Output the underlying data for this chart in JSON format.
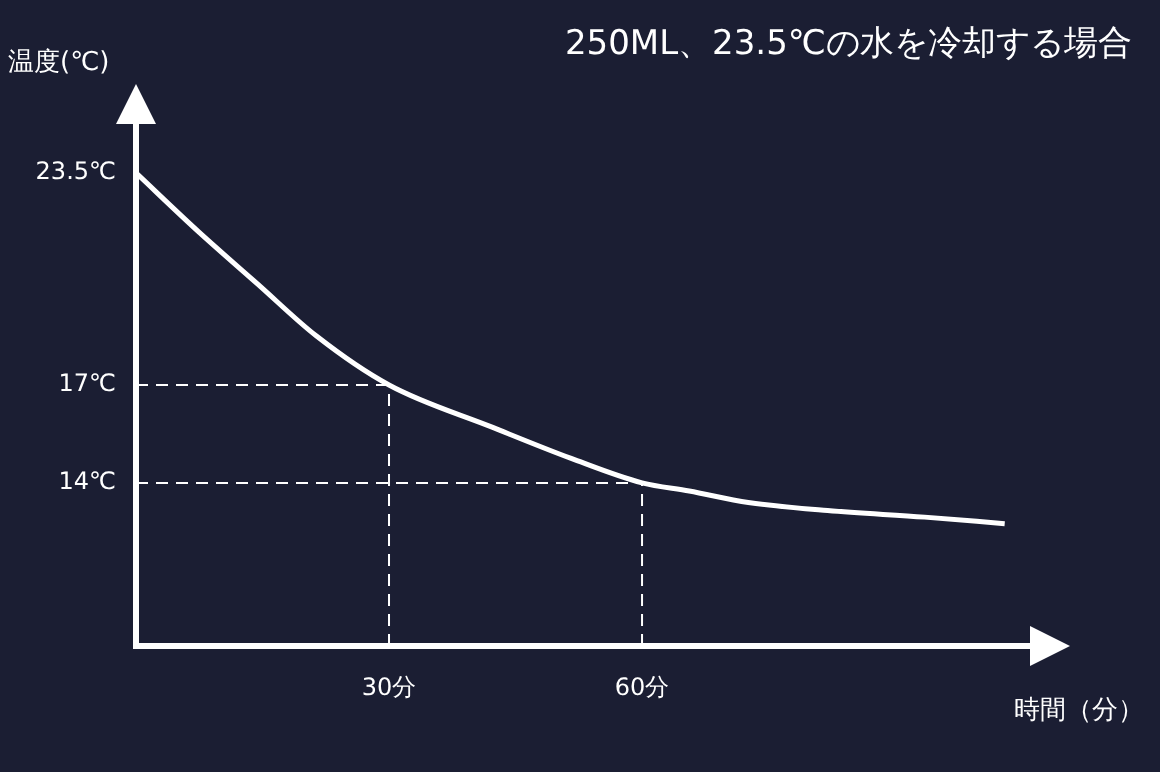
{
  "chart_data": {
    "type": "line",
    "title": "250ML、23.5℃の水を冷却する場合",
    "xlabel": "時間（分）",
    "ylabel": "温度(℃)",
    "x": [
      0,
      7.4,
      14.4,
      21.4,
      30,
      42.3,
      51.6,
      60,
      65.6,
      72.6,
      82,
      93.5,
      103
    ],
    "series": [
      {
        "color": "#ffffff",
        "values": [
          23.5,
          21.7,
          20.1,
          18.5,
          17,
          15.7,
          14.75,
          14,
          13.75,
          13.4,
          13.15,
          12.95,
          12.75
        ]
      }
    ],
    "xlim": [
      0,
      106
    ],
    "xticks": [
      {
        "value": 30,
        "label": "30分"
      },
      {
        "value": 60,
        "label": "60分"
      }
    ],
    "ylim": [
      9,
      25
    ],
    "yticks": [
      {
        "value": 14,
        "label": "14℃"
      },
      {
        "value": 17,
        "label": "17℃"
      },
      {
        "value": 23.5,
        "label": "23.5℃"
      }
    ],
    "ref_lines": [
      {
        "axis": "x",
        "value": 30,
        "color": "#ffffff",
        "line_style": "dashed"
      },
      {
        "axis": "y",
        "value": 17,
        "color": "#ffffff",
        "line_style": "dashed"
      },
      {
        "axis": "x",
        "value": 60,
        "color": "#ffffff",
        "line_style": "dashed"
      },
      {
        "axis": "y",
        "value": 14,
        "color": "#ffffff",
        "line_style": "dashed"
      }
    ],
    "grid": false,
    "legend": false,
    "marker": "none",
    "line_style": "solid"
  }
}
